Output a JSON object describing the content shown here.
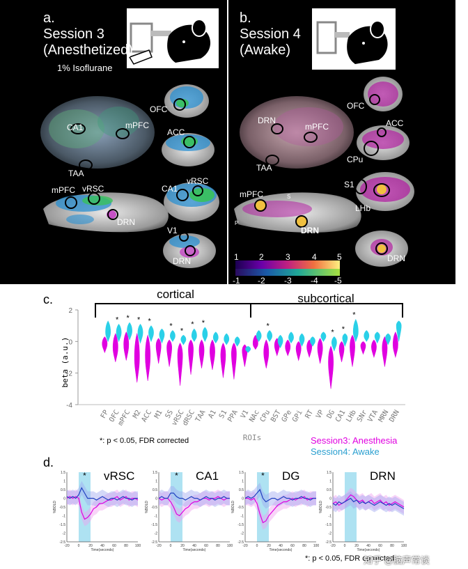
{
  "panel_a": {
    "letter": "a.",
    "title": "Session 3",
    "subtitle": "(Anesthetized)",
    "note": "1% Isoflurane",
    "rois_3d": [
      "CA1",
      "mPFC",
      "TAA"
    ],
    "rois_sag": [
      "mPFC",
      "vRSC",
      "DRN"
    ],
    "rois_cor": [
      "OFC",
      "ACC",
      "CA1",
      "vRSC",
      "V1",
      "DRN"
    ]
  },
  "panel_b": {
    "letter": "b.",
    "title": "Session 4",
    "subtitle": "(Awake)",
    "rois_3d": [
      "DRN",
      "mPFC",
      "TAA"
    ],
    "rois_sag": [
      "mPFC",
      "DRN",
      "S",
      "P"
    ],
    "rois_cor": [
      "OFC",
      "ACC",
      "CPu",
      "S1",
      "LHb",
      "DRN"
    ],
    "colorbar_pos": [
      "1",
      "2",
      "3",
      "4",
      "5"
    ],
    "colorbar_neg": [
      "-1",
      "-2",
      "-3",
      "-4",
      "-5"
    ]
  },
  "panel_c": {
    "letter": "c.",
    "group_labels": [
      "cortical",
      "subcortical"
    ],
    "ylabel": "beta (a.u.)",
    "xlabel": "ROIs",
    "footnote": "*: p < 0.05, FDR corrected",
    "legend": [
      "Session3: Anesthesia",
      "Session4: Awake"
    ]
  },
  "panel_d": {
    "letter": "d.",
    "footnote": "*: p < 0.05, FDR corrected",
    "watermark": "知乎 @脑声常谈",
    "ylabel": "%BOLD",
    "xlabel": "Time(seconds)",
    "subplots": [
      {
        "title": "vRSC",
        "star": "*"
      },
      {
        "title": "CA1",
        "star": "*"
      },
      {
        "title": "DG",
        "star": "*"
      },
      {
        "title": "DRN",
        "star": ""
      }
    ]
  },
  "colors": {
    "anesthesia": "#e000e0",
    "awake": "#2ad0e8",
    "bracket": "#000000"
  },
  "chart_data": [
    {
      "type": "violin",
      "xlabel": "ROIs",
      "ylabel": "beta (a.u.)",
      "ylim": [
        -4,
        2
      ],
      "yticks": [
        "-4",
        "-2",
        "0",
        "2"
      ],
      "categories": [
        "FP",
        "OFC",
        "mPFC",
        "M2",
        "ACC",
        "M1",
        "SS",
        "vRSC",
        "dRSC",
        "TAA",
        "A1",
        "S1",
        "PPA",
        "V1",
        "NAc",
        "CPu",
        "BST",
        "GPe",
        "GPi",
        "RT",
        "VP",
        "DG",
        "CA1",
        "LHb",
        "SNr",
        "VTA",
        "MRN",
        "DRN"
      ],
      "significant": [
        "OFC",
        "mPFC",
        "M2",
        "ACC",
        "SS",
        "vRSC",
        "dRSC",
        "TAA",
        "CPu",
        "DG",
        "CA1",
        "LHb"
      ],
      "series": [
        {
          "name": "Session3: Anesthesia",
          "color": "#e000e0",
          "values": [
            -0.2,
            -0.5,
            -0.3,
            -1.2,
            -1.1,
            -0.3,
            -0.4,
            -0.9,
            -0.5,
            -0.6,
            -0.7,
            -0.9,
            -0.8,
            -0.6,
            -0.2,
            -0.8,
            -0.3,
            -0.4,
            -0.5,
            -0.4,
            -0.5,
            -1.4,
            -0.5,
            -0.4,
            -0.3,
            -0.4,
            -0.5,
            -0.3
          ],
          "low": [
            -0.7,
            -1.3,
            -1.2,
            -2.6,
            -2.5,
            -1.4,
            -1.6,
            -2.8,
            -2.1,
            -1.7,
            -1.8,
            -2.3,
            -2.4,
            -1.6,
            -0.5,
            -1.7,
            -0.9,
            -0.9,
            -1.2,
            -1.0,
            -1.4,
            -3.0,
            -1.3,
            -1.6,
            -0.8,
            -1.0,
            -1.6,
            -1.0
          ],
          "high": [
            0.3,
            0.5,
            0.6,
            0.5,
            0.4,
            0.2,
            0.1,
            -0.1,
            0.1,
            0.1,
            0.1,
            -0.1,
            -0.1,
            -0.2,
            0.4,
            0.1,
            0.2,
            0.1,
            0.0,
            0.1,
            0.2,
            -0.3,
            0.0,
            0.4,
            0.0,
            0.1,
            0.3,
            0.6
          ]
        },
        {
          "name": "Session4: Awake",
          "color": "#2ad0e8",
          "values": [
            0.5,
            0.5,
            0.6,
            0.5,
            0.5,
            0.4,
            0.3,
            0.1,
            0.3,
            0.4,
            0.2,
            0.1,
            0.0,
            -0.5,
            0.3,
            0.3,
            0.0,
            0.2,
            0.1,
            0.0,
            0.3,
            -0.1,
            0.2,
            0.5,
            0.3,
            0.3,
            0.2,
            1.0
          ],
          "low": [
            0.0,
            0.0,
            0.1,
            -0.1,
            0.0,
            -0.1,
            0.0,
            -0.2,
            0.0,
            0.0,
            -0.1,
            -0.2,
            -0.3,
            -0.7,
            0.0,
            0.0,
            -0.4,
            -0.1,
            -0.3,
            -0.3,
            0.0,
            -0.6,
            -0.3,
            0.0,
            0.0,
            -0.1,
            -0.2,
            0.0
          ],
          "high": [
            1.3,
            1.1,
            1.2,
            1.1,
            1.0,
            0.8,
            0.7,
            0.4,
            0.8,
            0.9,
            0.6,
            0.5,
            0.3,
            -0.3,
            0.7,
            0.7,
            0.4,
            0.6,
            0.5,
            0.3,
            0.6,
            0.3,
            0.5,
            1.4,
            0.7,
            0.6,
            0.5,
            1.3
          ]
        }
      ]
    },
    {
      "type": "line",
      "title": "vRSC",
      "xlabel": "Time(seconds)",
      "ylabel": "%BOLD",
      "xlim": [
        -20,
        100
      ],
      "ylim": [
        -2.5,
        1.5
      ],
      "xticks": [
        "-20",
        "0",
        "20",
        "40",
        "60",
        "80",
        "100"
      ],
      "yticks": [
        "-2.5",
        "-2",
        "-1.5",
        "-1",
        "-0.5",
        "0",
        "0.5",
        "1",
        "1.5"
      ],
      "stim_window": [
        0,
        20
      ],
      "x": [
        -20,
        -15,
        -10,
        -5,
        0,
        5,
        10,
        15,
        20,
        25,
        30,
        35,
        40,
        45,
        50,
        55,
        60,
        65,
        70,
        75,
        80,
        85,
        90,
        95,
        100
      ],
      "series": [
        {
          "name": "Session3: Anesthesia",
          "color": "#e000e0",
          "values": [
            0.0,
            0.1,
            0.0,
            0.1,
            0.0,
            -0.8,
            -1.2,
            -1.1,
            -0.9,
            -0.6,
            -0.5,
            -0.3,
            -0.3,
            -0.2,
            -0.1,
            -0.1,
            0.0,
            0.1,
            -0.1,
            0.0,
            0.1,
            -0.1,
            0.0,
            0.0,
            -0.1
          ]
        },
        {
          "name": "Session4: Awake",
          "color": "#2040c0",
          "values": [
            0.1,
            0.0,
            0.1,
            0.0,
            0.2,
            0.6,
            0.3,
            0.0,
            0.0,
            0.0,
            -0.1,
            0.0,
            0.1,
            0.0,
            -0.1,
            0.0,
            0.0,
            -0.1,
            0.0,
            0.1,
            0.0,
            0.0,
            -0.1,
            0.0,
            0.0
          ]
        }
      ]
    },
    {
      "type": "line",
      "title": "CA1",
      "xlabel": "Time(seconds)",
      "ylabel": "%BOLD",
      "xlim": [
        -20,
        100
      ],
      "ylim": [
        -2.5,
        1.5
      ],
      "xticks": [
        "-20",
        "0",
        "20",
        "40",
        "60",
        "80",
        "100"
      ],
      "yticks": [
        "-2.5",
        "-2",
        "-1.5",
        "-1",
        "-0.5",
        "0",
        "0.5",
        "1",
        "1.5"
      ],
      "stim_window": [
        0,
        20
      ],
      "x": [
        -20,
        -15,
        -10,
        -5,
        0,
        5,
        10,
        15,
        20,
        25,
        30,
        35,
        40,
        45,
        50,
        55,
        60,
        65,
        70,
        75,
        80,
        85,
        90,
        95,
        100
      ],
      "series": [
        {
          "name": "Session3: Anesthesia",
          "color": "#e000e0",
          "values": [
            0.0,
            -0.1,
            0.0,
            0.0,
            -0.2,
            -0.5,
            -0.9,
            -1.0,
            -0.8,
            -0.6,
            -0.5,
            -0.3,
            -0.2,
            -0.2,
            -0.1,
            0.0,
            0.0,
            -0.1,
            0.0,
            0.0,
            0.1,
            0.0,
            -0.1,
            0.0,
            0.0
          ]
        },
        {
          "name": "Session4: Awake",
          "color": "#2040c0",
          "values": [
            0.0,
            0.1,
            0.0,
            0.0,
            0.3,
            0.3,
            0.1,
            0.0,
            0.0,
            -0.1,
            0.0,
            0.1,
            0.0,
            0.0,
            -0.1,
            0.0,
            0.1,
            0.0,
            0.0,
            -0.1,
            0.0,
            0.0,
            0.1,
            0.0,
            0.0
          ]
        }
      ]
    },
    {
      "type": "line",
      "title": "DG",
      "xlabel": "Time(seconds)",
      "ylabel": "%BOLD",
      "xlim": [
        -20,
        100
      ],
      "ylim": [
        -2.5,
        1.5
      ],
      "xticks": [
        "-20",
        "0",
        "20",
        "40",
        "60",
        "80",
        "100"
      ],
      "yticks": [
        "-2.5",
        "-2",
        "-1.5",
        "-1",
        "-0.5",
        "0",
        "0.5",
        "1",
        "1.5"
      ],
      "stim_window": [
        0,
        20
      ],
      "x": [
        -20,
        -15,
        -10,
        -5,
        0,
        5,
        10,
        15,
        20,
        25,
        30,
        35,
        40,
        45,
        50,
        55,
        60,
        65,
        70,
        75,
        80,
        85,
        90,
        95,
        100
      ],
      "series": [
        {
          "name": "Session3: Anesthesia",
          "color": "#e000e0",
          "values": [
            0.0,
            0.0,
            -0.1,
            0.0,
            -0.3,
            -0.9,
            -1.4,
            -1.3,
            -1.0,
            -0.8,
            -0.6,
            -0.4,
            -0.3,
            -0.2,
            -0.2,
            -0.1,
            0.0,
            -0.1,
            0.0,
            0.0,
            0.1,
            -0.1,
            0.0,
            0.0,
            0.0
          ]
        },
        {
          "name": "Session4: Awake",
          "color": "#2040c0",
          "values": [
            0.0,
            0.1,
            0.0,
            0.1,
            0.3,
            0.5,
            0.0,
            -0.2,
            -0.1,
            0.0,
            0.0,
            -0.1,
            0.0,
            0.1,
            0.0,
            0.0,
            -0.1,
            0.0,
            0.0,
            0.1,
            0.0,
            0.0,
            -0.1,
            0.0,
            0.0
          ]
        }
      ]
    },
    {
      "type": "line",
      "title": "DRN",
      "xlabel": "Time(seconds)",
      "ylabel": "%BOLD",
      "xlim": [
        -20,
        100
      ],
      "ylim": [
        -2.5,
        1.5
      ],
      "xticks": [
        "-20",
        "0",
        "20",
        "40",
        "60",
        "80",
        "100"
      ],
      "yticks": [
        "-2.5",
        "-2",
        "-1.5",
        "-1",
        "-0.5",
        "0",
        "0.5",
        "1",
        "1.5"
      ],
      "stim_window": [
        0,
        20
      ],
      "x": [
        -20,
        -15,
        -10,
        -5,
        0,
        5,
        10,
        15,
        20,
        25,
        30,
        35,
        40,
        45,
        50,
        55,
        60,
        65,
        70,
        75,
        80,
        85,
        90,
        95,
        100
      ],
      "series": [
        {
          "name": "Session3: Anesthesia",
          "color": "#e000e0",
          "values": [
            -0.3,
            -0.2,
            -0.4,
            -0.3,
            -0.2,
            0.0,
            0.2,
            0.1,
            -0.1,
            -0.2,
            -0.1,
            -0.3,
            -0.2,
            -0.1,
            -0.3,
            -0.2,
            -0.1,
            -0.3,
            -0.2,
            -0.4,
            -0.3,
            -0.2,
            -0.3,
            -0.4,
            -0.5
          ]
        },
        {
          "name": "Session4: Awake",
          "color": "#2040c0",
          "values": [
            -0.3,
            -0.4,
            -0.2,
            -0.3,
            -0.2,
            -0.1,
            0.0,
            -0.2,
            -0.1,
            -0.3,
            -0.2,
            -0.3,
            -0.2,
            -0.3,
            -0.4,
            -0.3,
            -0.2,
            -0.3,
            -0.4,
            -0.3,
            -0.4,
            -0.3,
            -0.4,
            -0.5,
            -0.6
          ]
        }
      ]
    }
  ]
}
